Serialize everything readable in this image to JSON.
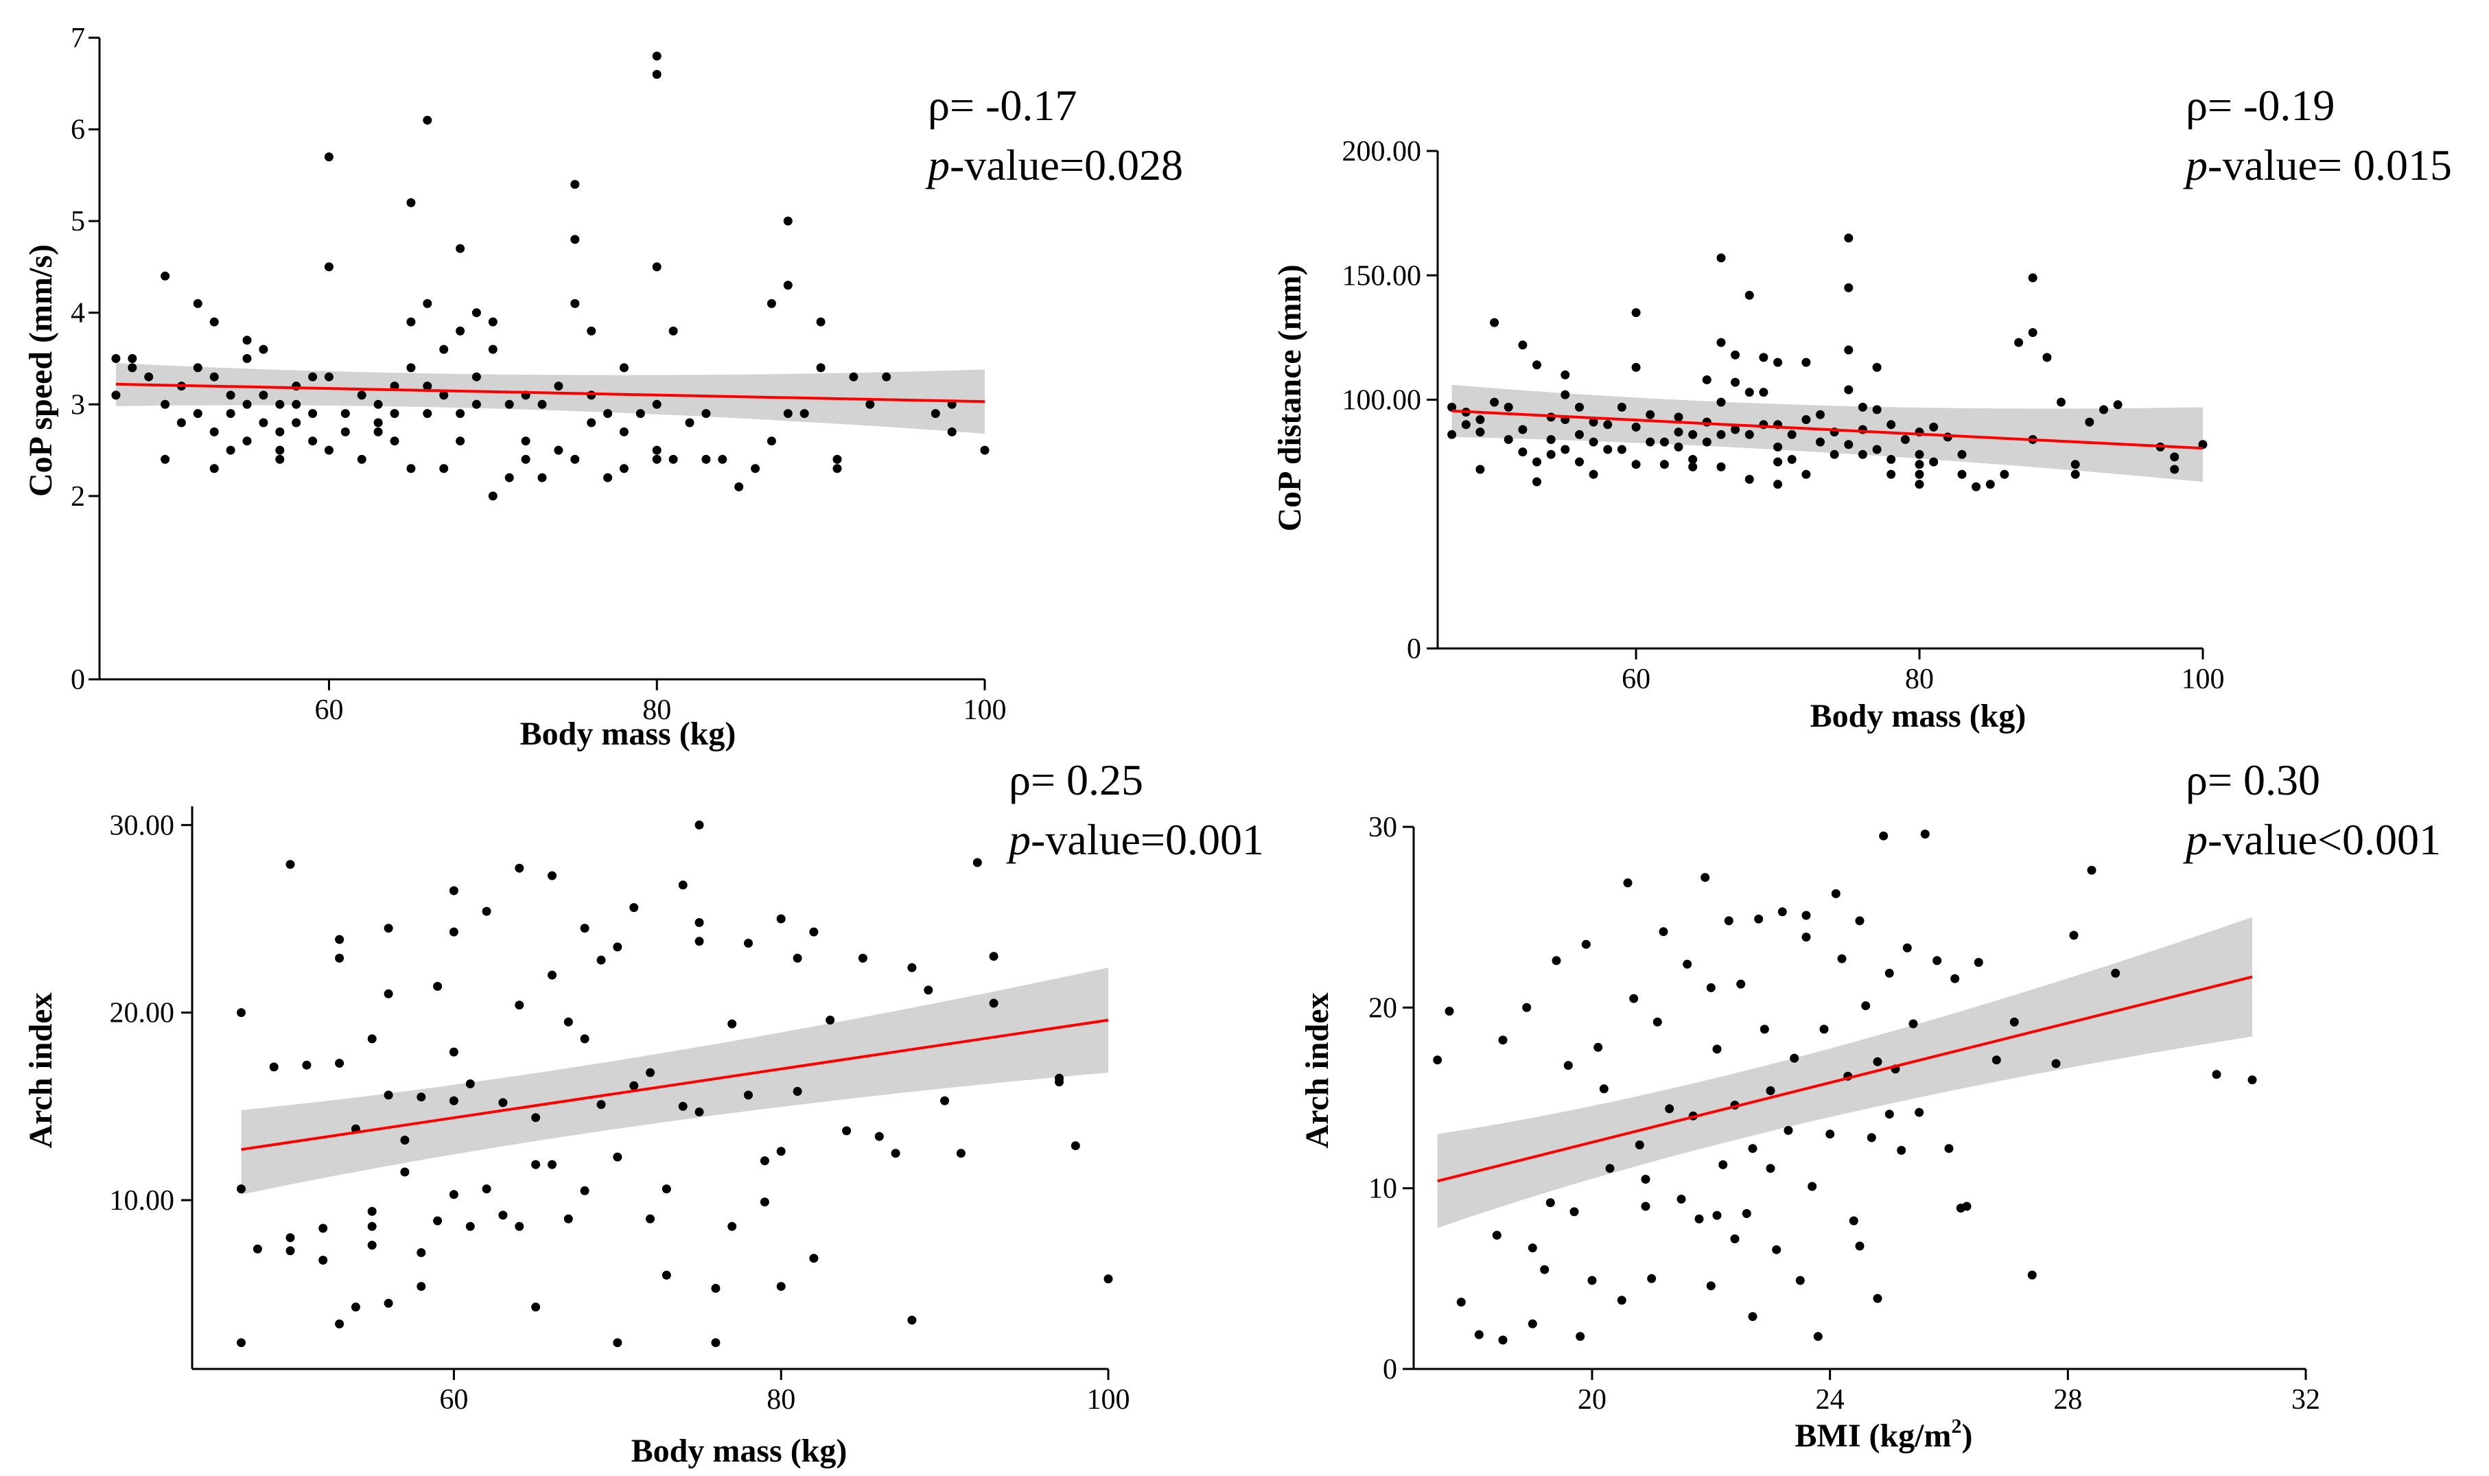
{
  "chart_data": [
    {
      "type": "scatter",
      "id": "A",
      "xlabel": "Body mass (kg)",
      "ylabel": "CoP speed (mm/s)",
      "xlim": [
        46,
        100
      ],
      "ylim": [
        0,
        7
      ],
      "xticks": [
        60,
        80,
        100
      ],
      "xtick_labels": [
        "60",
        "80",
        "100"
      ],
      "yticks": [
        0,
        2,
        3,
        4,
        5,
        6,
        7
      ],
      "ytick_labels": [
        "0",
        "2",
        "3",
        "4",
        "5",
        "6",
        "7"
      ],
      "rho_label": "ρ= -0.17",
      "p_italic": "p",
      "p_rest": "-value=0.028",
      "fit": {
        "x": [
          47,
          100
        ],
        "y": [
          3.22,
          3.03
        ]
      },
      "ci": {
        "upper": [
          3.45,
          3.38
        ],
        "lower": [
          2.98,
          2.68
        ],
        "center_x": 72,
        "center_upper": 3.23,
        "center_lower": 3.05
      },
      "x": [
        47,
        47,
        48,
        48,
        49,
        50,
        50,
        50,
        51,
        51,
        52,
        52,
        52,
        53,
        53,
        53,
        53,
        54,
        54,
        54,
        55,
        55,
        55,
        55,
        56,
        56,
        56,
        57,
        57,
        57,
        57,
        58,
        58,
        58,
        59,
        59,
        59,
        60,
        60,
        60,
        60,
        61,
        61,
        62,
        62,
        63,
        63,
        63,
        64,
        64,
        64,
        65,
        65,
        65,
        65,
        66,
        66,
        66,
        66,
        67,
        67,
        67,
        68,
        68,
        68,
        68,
        69,
        69,
        69,
        70,
        70,
        70,
        71,
        71,
        72,
        72,
        72,
        73,
        73,
        74,
        74,
        75,
        75,
        75,
        75,
        76,
        76,
        76,
        77,
        77,
        78,
        78,
        78,
        79,
        80,
        80,
        80,
        80,
        80,
        80,
        81,
        81,
        82,
        83,
        83,
        84,
        85,
        86,
        87,
        87,
        88,
        88,
        88,
        89,
        90,
        90,
        91,
        91,
        92,
        93,
        94,
        97,
        98,
        98,
        100
      ],
      "y": [
        3.1,
        3.5,
        3.4,
        3.5,
        3.3,
        4.4,
        3.0,
        2.4,
        3.2,
        2.8,
        4.1,
        3.4,
        2.9,
        3.9,
        2.7,
        2.3,
        3.3,
        3.1,
        2.9,
        2.5,
        3.7,
        3.5,
        3.0,
        2.6,
        3.6,
        3.1,
        2.8,
        3.0,
        2.7,
        2.5,
        2.4,
        3.0,
        2.8,
        3.2,
        2.9,
        2.6,
        3.3,
        5.7,
        4.5,
        3.3,
        2.5,
        2.9,
        2.7,
        3.1,
        2.4,
        3.0,
        2.8,
        2.7,
        3.2,
        2.9,
        2.6,
        5.2,
        3.9,
        3.4,
        2.3,
        6.1,
        4.1,
        3.2,
        2.9,
        3.6,
        3.1,
        2.3,
        4.7,
        3.8,
        2.9,
        2.6,
        4.0,
        3.3,
        3.0,
        3.9,
        3.6,
        2.0,
        3.0,
        2.2,
        3.1,
        2.6,
        2.4,
        3.0,
        2.2,
        3.2,
        2.5,
        5.4,
        4.8,
        4.1,
        2.4,
        3.8,
        3.1,
        2.8,
        2.9,
        2.2,
        3.4,
        2.7,
        2.3,
        2.9,
        6.8,
        6.6,
        4.5,
        3.0,
        2.5,
        2.4,
        2.4,
        3.8,
        2.8,
        2.9,
        2.4,
        2.4,
        2.1,
        2.3,
        4.1,
        2.6,
        5.0,
        4.3,
        2.9,
        2.9,
        3.9,
        3.4,
        2.4,
        2.3,
        3.3,
        3.0,
        3.3,
        2.9,
        2.7,
        3.0,
        2.5
      ]
    },
    {
      "type": "scatter",
      "id": "B",
      "xlabel": "Body mass (kg)",
      "ylabel": "CoP distance (mm)",
      "xlim": [
        46,
        100
      ],
      "ylim": [
        0,
        200
      ],
      "xticks": [
        60,
        80,
        100
      ],
      "xtick_labels": [
        "60",
        "80",
        "100"
      ],
      "yticks": [
        0,
        100,
        150,
        200
      ],
      "ytick_labels": [
        "0",
        "100.00",
        "150.00",
        "200.00"
      ],
      "rho_label": "ρ= -0.19",
      "p_italic": "p",
      "p_rest": "-value= 0.015",
      "fit": {
        "x": [
          47,
          100
        ],
        "y": [
          95.5,
          80.5
        ]
      },
      "ci": {
        "upper": [
          106,
          97
        ],
        "lower": [
          85,
          67
        ],
        "center_x": 72,
        "center_upper": 94,
        "center_lower": 82
      },
      "x": [
        47,
        47,
        48,
        48,
        49,
        49,
        49,
        50,
        50,
        51,
        51,
        52,
        52,
        52,
        53,
        53,
        53,
        54,
        54,
        54,
        55,
        55,
        55,
        55,
        56,
        56,
        56,
        57,
        57,
        57,
        58,
        58,
        59,
        59,
        60,
        60,
        60,
        60,
        61,
        61,
        62,
        62,
        63,
        63,
        63,
        64,
        64,
        64,
        65,
        65,
        65,
        66,
        66,
        66,
        66,
        66,
        67,
        67,
        67,
        68,
        68,
        68,
        68,
        69,
        69,
        69,
        70,
        70,
        70,
        70,
        70,
        71,
        71,
        72,
        72,
        72,
        73,
        73,
        74,
        74,
        75,
        75,
        75,
        75,
        75,
        76,
        76,
        76,
        77,
        77,
        77,
        78,
        78,
        78,
        79,
        80,
        80,
        80,
        80,
        80,
        81,
        81,
        82,
        83,
        83,
        84,
        85,
        86,
        87,
        88,
        88,
        88,
        89,
        90,
        91,
        91,
        92,
        93,
        94,
        97,
        98,
        98,
        100
      ],
      "y": [
        97,
        86,
        95,
        90,
        92,
        87,
        72,
        131,
        99,
        97,
        84,
        122,
        88,
        79,
        114,
        67,
        75,
        93,
        84,
        78,
        110,
        102,
        92,
        80,
        97,
        86,
        75,
        91,
        83,
        70,
        90,
        80,
        97,
        80,
        135,
        113,
        89,
        74,
        94,
        83,
        83,
        74,
        93,
        87,
        81,
        86,
        76,
        73,
        108,
        91,
        83,
        157,
        123,
        99,
        86,
        73,
        118,
        107,
        88,
        142,
        103,
        86,
        68,
        117,
        103,
        90,
        115,
        90,
        81,
        75,
        66,
        86,
        76,
        115,
        92,
        70,
        94,
        83,
        87,
        78,
        165,
        145,
        120,
        104,
        82,
        97,
        88,
        78,
        113,
        96,
        80,
        90,
        76,
        70,
        84,
        87,
        78,
        74,
        70,
        66,
        89,
        75,
        85,
        78,
        70,
        65,
        66,
        70,
        123,
        149,
        127,
        84,
        117,
        99,
        74,
        70,
        91,
        96,
        98,
        81,
        77,
        72,
        82
      ]
    },
    {
      "type": "scatter",
      "id": "C",
      "xlabel": "Body mass (kg)",
      "ylabel": "Arch index",
      "xlim": [
        44,
        100
      ],
      "ylim": [
        1,
        31
      ],
      "xticks": [
        60,
        80,
        100
      ],
      "xtick_labels": [
        "60",
        "80",
        "100"
      ],
      "yticks": [
        10,
        20,
        30
      ],
      "ytick_labels": [
        "10.00",
        "20.00",
        "30.00"
      ],
      "rho_label": "ρ= 0.25",
      "p_italic": "p",
      "p_rest": "-value=0.001",
      "fit": {
        "x": [
          47,
          100
        ],
        "y": [
          12.7,
          19.6
        ]
      },
      "ci": {
        "upper": [
          14.8,
          22.4
        ],
        "lower": [
          10.3,
          16.8
        ],
        "center_x": 70,
        "center_upper": 16.8,
        "center_lower": 14.5
      },
      "x": [
        47,
        47,
        47,
        48,
        49,
        50,
        50,
        50,
        51,
        52,
        52,
        53,
        53,
        53,
        53,
        54,
        54,
        55,
        55,
        55,
        55,
        56,
        56,
        56,
        56,
        57,
        57,
        58,
        58,
        58,
        59,
        59,
        60,
        60,
        60,
        60,
        60,
        61,
        61,
        62,
        62,
        63,
        63,
        64,
        64,
        64,
        65,
        65,
        65,
        66,
        66,
        66,
        67,
        67,
        68,
        68,
        68,
        69,
        69,
        70,
        70,
        70,
        71,
        71,
        72,
        72,
        73,
        73,
        74,
        74,
        75,
        75,
        75,
        75,
        76,
        76,
        77,
        77,
        78,
        78,
        79,
        79,
        80,
        80,
        80,
        81,
        81,
        82,
        82,
        83,
        84,
        85,
        86,
        87,
        88,
        88,
        89,
        90,
        91,
        92,
        93,
        93,
        97,
        97,
        98,
        100
      ],
      "y": [
        20,
        10.6,
        2.4,
        7.4,
        17.1,
        27.9,
        8.0,
        7.3,
        17.2,
        6.8,
        8.5,
        23.9,
        22.9,
        17.3,
        3.4,
        13.8,
        4.3,
        18.6,
        9.4,
        8.6,
        7.6,
        24.5,
        21.0,
        15.6,
        4.5,
        13.2,
        11.5,
        15.5,
        7.2,
        5.4,
        21.4,
        8.9,
        26.5,
        24.3,
        17.9,
        15.3,
        10.3,
        16.2,
        8.6,
        25.4,
        10.6,
        9.2,
        15.2,
        27.7,
        20.4,
        8.6,
        14.4,
        11.9,
        4.3,
        27.3,
        22.0,
        11.9,
        19.5,
        9.0,
        24.5,
        18.6,
        10.5,
        22.8,
        15.1,
        23.5,
        12.3,
        2.4,
        25.6,
        16.1,
        16.8,
        9.0,
        10.6,
        6.0,
        26.8,
        15.0,
        30.0,
        24.8,
        23.8,
        14.7,
        5.3,
        2.4,
        19.4,
        8.6,
        23.7,
        15.6,
        12.1,
        9.9,
        25.0,
        12.6,
        5.4,
        22.9,
        15.8,
        24.3,
        6.9,
        19.6,
        13.7,
        22.9,
        13.4,
        12.5,
        22.4,
        3.6,
        21.2,
        15.3,
        12.5,
        28.0,
        23.0,
        20.5,
        16.3,
        16.5,
        12.9,
        5.8
      ]
    },
    {
      "type": "scatter",
      "id": "D",
      "xlabel": "BMI (kg/m",
      "xlabel_sup": "2",
      "xlabel_end": ")",
      "ylabel": "Arch index",
      "xlim": [
        17,
        32
      ],
      "ylim": [
        0,
        30
      ],
      "xticks": [
        20,
        24,
        28,
        32
      ],
      "xtick_labels": [
        "20",
        "24",
        "28",
        "32"
      ],
      "yticks": [
        0,
        10,
        20,
        30
      ],
      "ytick_labels": [
        "0",
        "10",
        "20",
        "30"
      ],
      "rho_label": "ρ= 0.30",
      "p_italic": "p",
      "p_rest": "-value<0.001",
      "fit": {
        "x": [
          17.4,
          31.1
        ],
        "y": [
          10.4,
          21.7
        ]
      },
      "ci": {
        "upper": [
          13.0,
          25.0
        ],
        "lower": [
          7.8,
          18.4
        ],
        "center_x": 23.0,
        "center_upper": 15.8,
        "center_lower": 14.2
      },
      "x": [
        17.4,
        17.6,
        17.8,
        18.1,
        18.4,
        18.5,
        18.5,
        18.9,
        19.0,
        19.0,
        19.2,
        19.4,
        19.6,
        19.7,
        19.8,
        19.9,
        20.0,
        20.1,
        20.3,
        20.5,
        20.6,
        20.7,
        20.8,
        20.9,
        21.0,
        21.2,
        21.3,
        21.5,
        21.6,
        21.8,
        21.9,
        22.0,
        22.0,
        22.1,
        22.2,
        22.3,
        22.4,
        22.5,
        22.6,
        22.7,
        22.8,
        22.9,
        23.0,
        23.1,
        23.2,
        23.3,
        23.4,
        23.5,
        23.6,
        23.7,
        23.8,
        23.9,
        24.0,
        24.1,
        24.2,
        24.3,
        24.4,
        24.5,
        24.6,
        24.7,
        24.8,
        24.9,
        25.0,
        25.1,
        25.2,
        25.3,
        25.5,
        25.6,
        25.8,
        26.0,
        26.1,
        26.3,
        26.5,
        26.8,
        27.1,
        27.4,
        27.8,
        28.1,
        28.4,
        28.8,
        30.5,
        31.1,
        19.3,
        20.2,
        21.1,
        22.1,
        22.7,
        23.6,
        24.5,
        25.4,
        26.2,
        21.7,
        23.0,
        24.8,
        20.9,
        22.4,
        25.0
      ],
      "y": [
        17.1,
        19.8,
        3.7,
        1.9,
        7.4,
        18.2,
        1.6,
        20.0,
        6.7,
        2.5,
        5.5,
        22.6,
        16.8,
        8.7,
        1.8,
        23.5,
        4.9,
        17.8,
        11.1,
        3.8,
        26.9,
        20.5,
        12.4,
        9.0,
        5.0,
        24.2,
        14.4,
        9.4,
        22.4,
        8.3,
        27.2,
        21.1,
        4.6,
        17.7,
        11.3,
        24.8,
        14.6,
        21.3,
        8.6,
        2.9,
        24.9,
        18.8,
        15.4,
        6.6,
        25.3,
        13.2,
        17.2,
        4.9,
        23.9,
        10.1,
        1.8,
        18.8,
        13.0,
        26.3,
        22.7,
        16.2,
        8.2,
        24.8,
        20.1,
        12.8,
        3.9,
        29.5,
        21.9,
        16.6,
        12.1,
        23.3,
        14.2,
        29.6,
        22.6,
        12.2,
        21.6,
        9.0,
        22.5,
        17.1,
        19.2,
        5.2,
        16.9,
        24.0,
        27.6,
        21.9,
        16.3,
        16.0,
        9.2,
        15.5,
        19.2,
        8.5,
        12.2,
        25.1,
        6.8,
        19.1,
        8.9,
        14.0,
        11.1,
        17.0,
        10.5,
        7.2,
        14.1
      ]
    }
  ]
}
